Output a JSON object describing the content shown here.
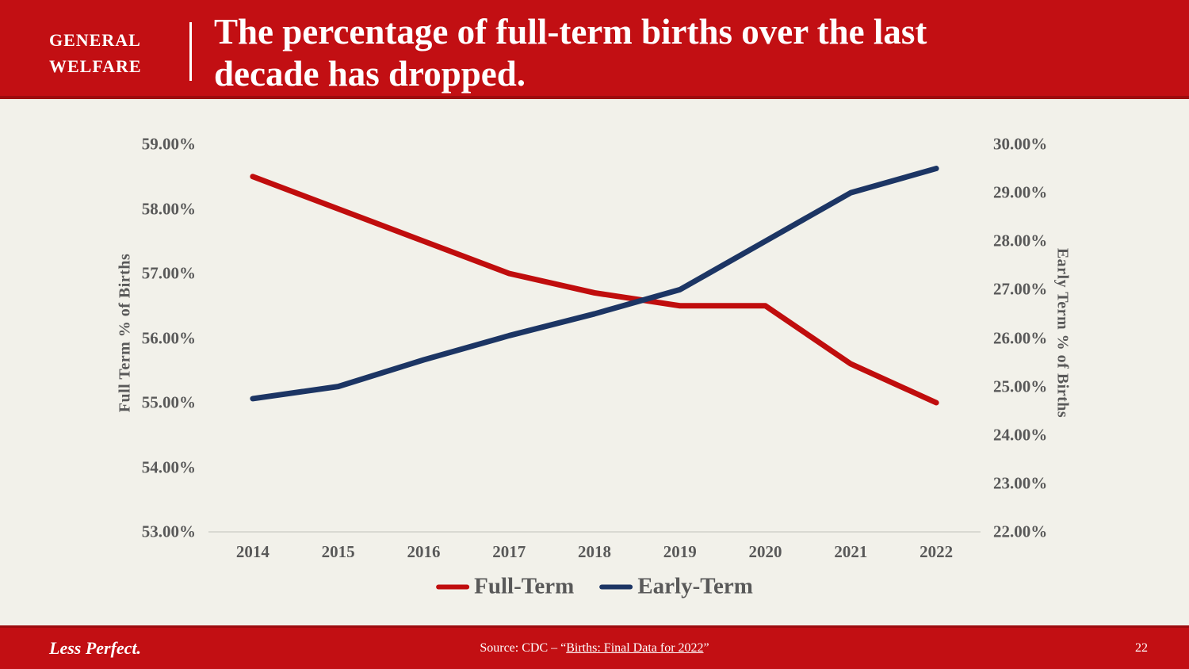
{
  "header": {
    "kicker_line1": "GENERAL",
    "kicker_line2": "WELFARE",
    "title_line1": "The percentage of full-term births over the last",
    "title_line2": "decade has dropped."
  },
  "footer": {
    "brand": "Less Perfect.",
    "source_prefix": "Source: CDC – “",
    "source_link": "Births: Final Data for 2022",
    "source_suffix": "”",
    "page_number": "22"
  },
  "colors": {
    "band_red": "#C20F13",
    "band_red_dark_edge": "#9D0C0E",
    "full_term_red": "#C00D0D",
    "early_term_navy": "#1C3564",
    "axis_text_gray": "#595959",
    "background_cream": "#F2F1EA",
    "axis_line_gray": "#D9D9D2"
  },
  "chart_data": {
    "type": "line",
    "title": "Full-Term vs Early-Term births, 2014-2022",
    "categories": [
      "2014",
      "2015",
      "2016",
      "2017",
      "2018",
      "2019",
      "2020",
      "2021",
      "2022"
    ],
    "series": [
      {
        "name": "Full-Term",
        "axis": "left",
        "color": "#C00D0D",
        "values": [
          58.5,
          58.0,
          57.5,
          57.0,
          56.7,
          56.5,
          56.5,
          55.6,
          55.0
        ]
      },
      {
        "name": "Early-Term",
        "axis": "right",
        "color": "#1C3564",
        "values": [
          24.75,
          25.0,
          25.55,
          26.05,
          26.5,
          27.0,
          28.0,
          29.0,
          29.5
        ]
      }
    ],
    "left_axis": {
      "label": "Full Term % of Births",
      "min": 53,
      "max": 59,
      "ticks": [
        "59.00%",
        "58.00%",
        "57.00%",
        "56.00%",
        "55.00%",
        "54.00%",
        "53.00%"
      ]
    },
    "right_axis": {
      "label": "Early Term % of Births",
      "min": 22,
      "max": 30,
      "ticks": [
        "30.00%",
        "29.00%",
        "28.00%",
        "27.00%",
        "26.00%",
        "25.00%",
        "24.00%",
        "23.00%",
        "22.00%"
      ]
    },
    "grid": false,
    "legend_position": "bottom",
    "line_width": 7
  }
}
